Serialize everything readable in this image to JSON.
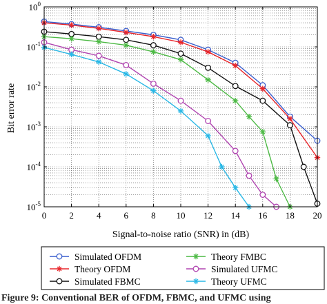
{
  "chart_data": {
    "type": "line",
    "xlabel": "Signal-to-noise ratio (SNR) in (dB)",
    "ylabel": "Bit error rate",
    "xlim": [
      0,
      20
    ],
    "ylim": [
      1e-05,
      1
    ],
    "y_scale": "log",
    "grid": "dotted",
    "x_ticks": [
      "0",
      "2",
      "4",
      "6",
      "8",
      "10",
      "12",
      "14",
      "16",
      "18",
      "20"
    ],
    "y_ticks": [
      {
        "value": 1,
        "base": "10",
        "exp": "0"
      },
      {
        "value": 0.1,
        "base": "10",
        "exp": "-1"
      },
      {
        "value": 0.01,
        "base": "10",
        "exp": "-2"
      },
      {
        "value": 0.001,
        "base": "10",
        "exp": "-3"
      },
      {
        "value": 0.0001,
        "base": "10",
        "exp": "-4"
      },
      {
        "value": 1e-05,
        "base": "10",
        "exp": "-5"
      }
    ],
    "legend_placement": "bottom",
    "series": [
      {
        "name": "Simulated OFDM",
        "color": "#3a5fcd",
        "marker": "circle",
        "x": [
          0,
          2,
          4,
          6,
          8,
          10,
          12,
          14,
          16,
          18,
          20
        ],
        "y": [
          0.43,
          0.37,
          0.31,
          0.25,
          0.2,
          0.15,
          0.085,
          0.04,
          0.011,
          0.0018,
          0.00045
        ]
      },
      {
        "name": "Theory OFDM",
        "color": "#e8262b",
        "marker": "star",
        "x": [
          0,
          2,
          4,
          6,
          8,
          10,
          12,
          14,
          16,
          18,
          20
        ],
        "y": [
          0.4,
          0.35,
          0.29,
          0.23,
          0.18,
          0.13,
          0.075,
          0.034,
          0.009,
          0.0016,
          0.00017
        ]
      },
      {
        "name": "Simulated FBMC",
        "color": "#111111",
        "marker": "circle",
        "x": [
          0,
          2,
          4,
          6,
          8,
          10,
          12,
          14,
          16,
          18,
          19,
          20
        ],
        "y": [
          0.24,
          0.21,
          0.18,
          0.15,
          0.11,
          0.068,
          0.03,
          0.0105,
          0.0045,
          0.0011,
          0.0001,
          1.2e-05
        ]
      },
      {
        "name": "Theory FMBC",
        "color": "#4cb944",
        "marker": "star",
        "x": [
          0,
          2,
          4,
          6,
          8,
          10,
          12,
          14,
          15,
          16,
          17,
          18
        ],
        "y": [
          0.18,
          0.16,
          0.135,
          0.11,
          0.075,
          0.048,
          0.015,
          0.0045,
          0.0018,
          0.00075,
          5e-05,
          1e-05
        ]
      },
      {
        "name": "Simulated UFMC",
        "color": "#b044b0",
        "marker": "circle",
        "x": [
          0,
          2,
          4,
          6,
          8,
          10,
          12,
          14,
          15,
          16,
          17
        ],
        "y": [
          0.13,
          0.085,
          0.06,
          0.035,
          0.012,
          0.0045,
          0.0014,
          0.00025,
          6e-05,
          2e-05,
          1e-05
        ]
      },
      {
        "name": "Theory UFMC",
        "color": "#29b8e6",
        "marker": "star",
        "x": [
          0,
          2,
          4,
          6,
          8,
          10,
          12,
          13,
          14,
          15
        ],
        "y": [
          0.097,
          0.065,
          0.042,
          0.021,
          0.008,
          0.0025,
          0.0006,
          0.0001,
          3e-05,
          1e-05
        ]
      }
    ]
  },
  "caption": "Figure 9: Conventional BER of OFDM, FBMC, and UFMC using"
}
